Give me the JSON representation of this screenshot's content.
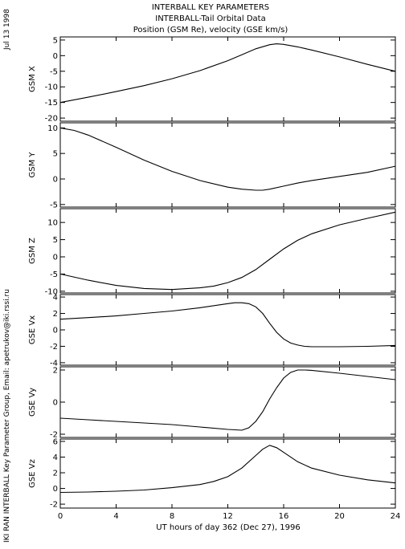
{
  "header": {
    "title_lines": [
      "INTERBALL KEY PARAMETERS",
      "INTERBALL-Tail Orbital Data",
      "Position (GSM Re), velocity (GSE km/s)"
    ],
    "date_label": "Jul 13 1998",
    "credit": "IKI RAN INTERBALL Key Parameter Group, Email: apetrukov@iki.rssi.ru"
  },
  "chart_data": {
    "type": "line",
    "xlabel": "UT hours of day 362 (Dec 27), 1996",
    "xlim": [
      0,
      24
    ],
    "xticks": [
      0,
      4,
      8,
      12,
      16,
      20,
      24
    ],
    "panels": [
      {
        "ylabel": "GSM X",
        "ylim": [
          -21,
          6
        ],
        "yticks": [
          5,
          0,
          -5,
          -10,
          -15,
          -20
        ],
        "x": [
          0,
          2,
          4,
          6,
          8,
          10,
          12,
          13,
          14,
          15,
          15.5,
          16,
          17,
          18,
          20,
          22,
          24
        ],
        "y": [
          -15,
          -13.3,
          -11.5,
          -9.6,
          -7.4,
          -4.8,
          -1.6,
          0.3,
          2.2,
          3.5,
          3.8,
          3.6,
          2.8,
          1.8,
          -0.4,
          -2.8,
          -5
        ]
      },
      {
        "ylabel": "GSM Y",
        "ylim": [
          -5.5,
          11
        ],
        "yticks": [
          10,
          5,
          0,
          -5
        ],
        "x": [
          0,
          1,
          2,
          4,
          6,
          8,
          10,
          12,
          13,
          14,
          14.5,
          15,
          16,
          17,
          18,
          20,
          22,
          24
        ],
        "y": [
          10,
          9.5,
          8.6,
          6.2,
          3.7,
          1.5,
          -0.3,
          -1.6,
          -2.0,
          -2.2,
          -2.2,
          -2.0,
          -1.4,
          -0.8,
          -0.3,
          0.5,
          1.3,
          2.5
        ]
      },
      {
        "ylabel": "GSM Z",
        "ylim": [
          -10.5,
          14
        ],
        "yticks": [
          10,
          5,
          0,
          -5,
          -10
        ],
        "x": [
          0,
          2,
          4,
          6,
          8,
          10,
          11,
          12,
          13,
          14,
          15,
          16,
          17,
          18,
          20,
          22,
          24
        ],
        "y": [
          -5,
          -6.8,
          -8.3,
          -9.2,
          -9.5,
          -9.0,
          -8.5,
          -7.5,
          -6.0,
          -3.7,
          -0.7,
          2.3,
          4.8,
          6.7,
          9.3,
          11.2,
          13
        ]
      },
      {
        "ylabel": "GSE Vx",
        "ylim": [
          -4.3,
          4.3
        ],
        "yticks": [
          4,
          2,
          0,
          -2,
          -4
        ],
        "x": [
          0,
          2,
          4,
          6,
          8,
          10,
          12,
          12.5,
          13,
          13.5,
          14,
          14.5,
          15,
          15.5,
          16,
          16.5,
          17,
          17.5,
          18,
          20,
          22,
          24
        ],
        "y": [
          1.3,
          1.5,
          1.7,
          2.0,
          2.3,
          2.7,
          3.2,
          3.3,
          3.3,
          3.2,
          2.8,
          2.0,
          0.8,
          -0.3,
          -1.1,
          -1.6,
          -1.85,
          -2.0,
          -2.05,
          -2.05,
          -2.0,
          -1.9
        ]
      },
      {
        "ylabel": "GSE Vy",
        "ylim": [
          -2.2,
          2.2
        ],
        "yticks": [
          2,
          0,
          -2
        ],
        "x": [
          0,
          2,
          4,
          6,
          8,
          10,
          12,
          13,
          13.5,
          14,
          14.5,
          15,
          15.5,
          16,
          16.5,
          17,
          17.5,
          18,
          20,
          22,
          24
        ],
        "y": [
          -1.0,
          -1.1,
          -1.2,
          -1.3,
          -1.4,
          -1.55,
          -1.7,
          -1.75,
          -1.6,
          -1.2,
          -0.6,
          0.2,
          0.9,
          1.5,
          1.85,
          2.0,
          2.0,
          1.98,
          1.8,
          1.6,
          1.4
        ]
      },
      {
        "ylabel": "GSE Vz",
        "ylim": [
          -2.5,
          6.3
        ],
        "yticks": [
          6,
          4,
          2,
          0,
          -2
        ],
        "x": [
          0,
          2,
          4,
          6,
          8,
          10,
          11,
          12,
          13,
          14,
          14.5,
          15,
          15.5,
          16,
          17,
          18,
          20,
          22,
          24
        ],
        "y": [
          -0.5,
          -0.45,
          -0.35,
          -0.2,
          0.1,
          0.5,
          0.9,
          1.5,
          2.6,
          4.2,
          5.0,
          5.5,
          5.2,
          4.6,
          3.4,
          2.6,
          1.7,
          1.1,
          0.7
        ]
      }
    ]
  }
}
